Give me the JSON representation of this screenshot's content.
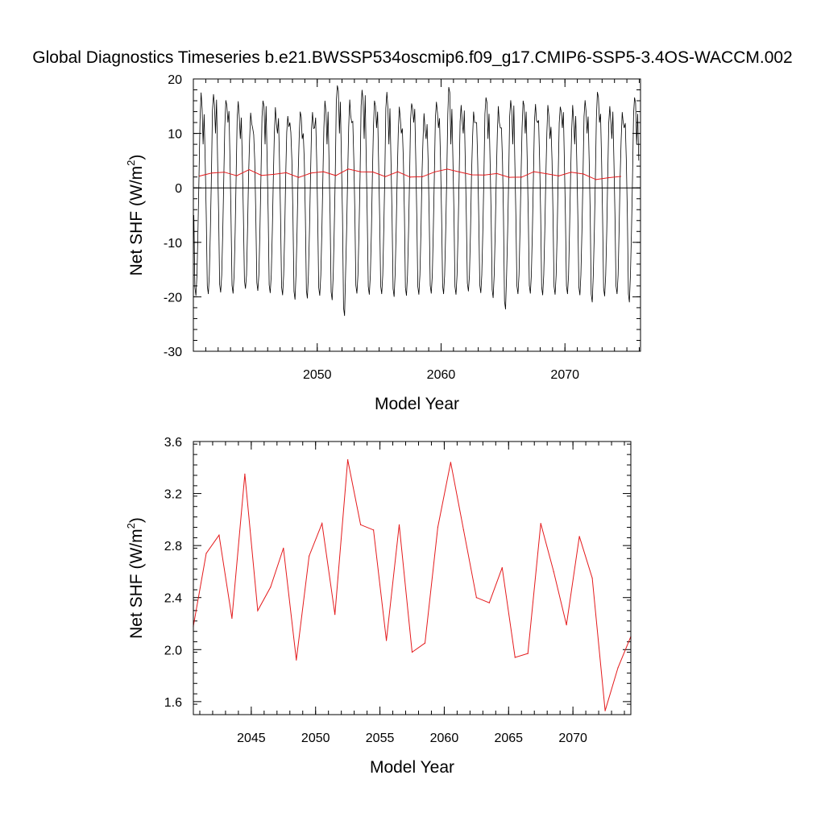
{
  "title": "Global Diagnostics Timeseries b.e21.BWSSP534oscmip6.f09_g17.CMIP6-SSP5-3.4OS-WACCM.002",
  "colors": {
    "monthly": "#000000",
    "annual": "#e41a1c",
    "zero_line": "#000000"
  },
  "chart_data": [
    {
      "type": "line",
      "xlabel": "Model Year",
      "ylabel": "Net SHF (W/m",
      "ylabel_sup": "2",
      "ylabel_close": ")",
      "xlim": [
        2040,
        2076.1
      ],
      "ylim": [
        -30,
        20
      ],
      "xticks": [
        2050,
        2060,
        2070
      ],
      "yticks": [
        -30,
        -20,
        -10,
        0,
        10,
        20
      ],
      "reference_line_y": 0,
      "series": [
        {
          "role": "monthly",
          "x_start": 2040.04,
          "x_step": 0.08333,
          "seasonal_cycle": [
            -5,
            -18,
            -19.5,
            -16,
            -8,
            2,
            12,
            16,
            15,
            10,
            12,
            5
          ],
          "peaks": [
            17.5,
            17.2,
            16.1,
            15.9,
            13.8,
            16.0,
            14.8,
            13.2,
            14.0,
            13.9,
            16.0,
            18.8,
            16.2,
            18.0,
            16.0,
            17.6,
            14.9,
            15.5,
            13.7,
            15.8,
            18.5,
            15.2,
            14.0,
            16.6,
            15.0,
            16.1,
            16.0,
            15.4,
            15.2,
            14.9,
            15.2,
            16.1,
            17.6,
            15.0,
            13.9,
            16.6
          ],
          "troughs": [
            -19.8,
            -19.5,
            -19.2,
            -19.4,
            -18.5,
            -18.9,
            -19.3,
            -19.7,
            -20.5,
            -20.3,
            -19.8,
            -20.6,
            -23.5,
            -19.4,
            -19.6,
            -19.5,
            -20.0,
            -19.8,
            -19.6,
            -19.4,
            -19.5,
            -19.6,
            -19.0,
            -19.3,
            -20.2,
            -22.3,
            -19.5,
            -19.4,
            -19.7,
            -19.6,
            -19.5,
            -19.7,
            -21.0,
            -19.9,
            -19.5,
            -21.0
          ]
        },
        {
          "role": "annual",
          "x": [
            2040.5,
            2041.5,
            2042.5,
            2043.5,
            2044.5,
            2045.5,
            2046.5,
            2047.5,
            2048.5,
            2049.5,
            2050.5,
            2051.5,
            2052.5,
            2053.5,
            2054.5,
            2055.5,
            2056.5,
            2057.5,
            2058.5,
            2059.5,
            2060.5,
            2061.5,
            2062.5,
            2063.5,
            2064.5,
            2065.5,
            2066.5,
            2067.5,
            2068.5,
            2069.5,
            2070.5,
            2071.5,
            2072.5,
            2073.5,
            2074.5
          ],
          "y": [
            2.18,
            2.74,
            2.88,
            2.24,
            3.35,
            2.3,
            2.48,
            2.78,
            1.92,
            2.72,
            2.97,
            2.27,
            3.46,
            2.96,
            2.92,
            2.07,
            2.96,
            1.98,
            2.05,
            2.94,
            3.44,
            2.92,
            2.4,
            2.36,
            2.63,
            1.94,
            1.97,
            2.97,
            2.6,
            2.19,
            2.87,
            2.55,
            1.53,
            1.86,
            2.1
          ]
        }
      ]
    },
    {
      "type": "line",
      "xlabel": "Model Year",
      "ylabel": "Net SHF (W/m",
      "ylabel_sup": "2",
      "ylabel_close": ")",
      "xlim": [
        2040.5,
        2074.5
      ],
      "ylim": [
        1.5,
        3.6
      ],
      "xticks": [
        2045,
        2050,
        2055,
        2060,
        2065,
        2070
      ],
      "yticks": [
        1.6,
        2.0,
        2.4,
        2.8,
        3.2,
        3.6
      ],
      "series": [
        {
          "role": "annual",
          "x": [
            2040.5,
            2041.5,
            2042.5,
            2043.5,
            2044.5,
            2045.5,
            2046.5,
            2047.5,
            2048.5,
            2049.5,
            2050.5,
            2051.5,
            2052.5,
            2053.5,
            2054.5,
            2055.5,
            2056.5,
            2057.5,
            2058.5,
            2059.5,
            2060.5,
            2061.5,
            2062.5,
            2063.5,
            2064.5,
            2065.5,
            2066.5,
            2067.5,
            2068.5,
            2069.5,
            2070.5,
            2071.5,
            2072.5,
            2073.5,
            2074.5
          ],
          "y": [
            2.18,
            2.74,
            2.88,
            2.24,
            3.35,
            2.3,
            2.48,
            2.78,
            1.92,
            2.72,
            2.97,
            2.27,
            3.46,
            2.96,
            2.92,
            2.07,
            2.96,
            1.98,
            2.05,
            2.94,
            3.44,
            2.92,
            2.4,
            2.36,
            2.63,
            1.94,
            1.97,
            2.97,
            2.6,
            2.19,
            2.87,
            2.55,
            1.53,
            1.86,
            2.1
          ]
        }
      ]
    }
  ]
}
